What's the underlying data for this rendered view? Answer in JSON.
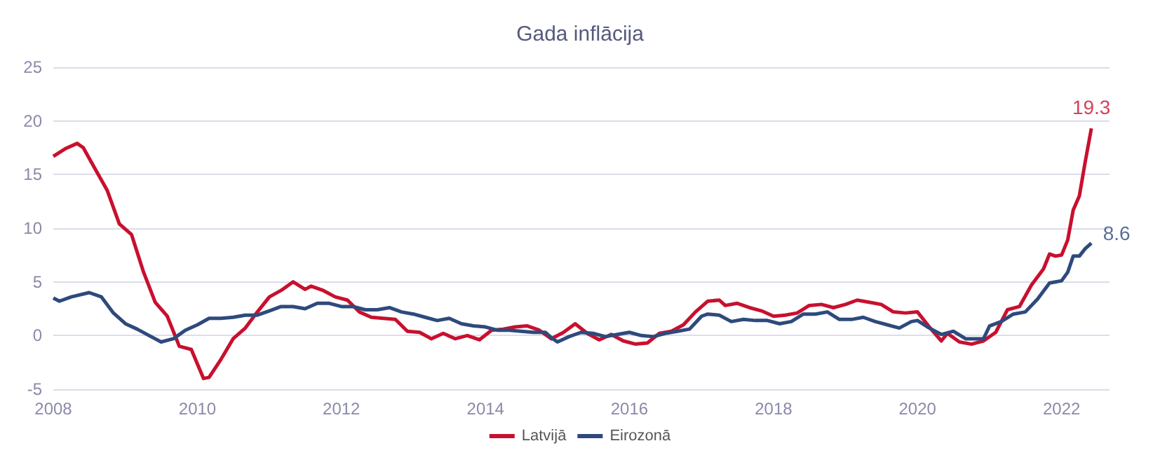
{
  "chart_data": {
    "type": "line",
    "title": "Gada inflācija",
    "xlim": [
      "2008-01",
      "2022-09"
    ],
    "xticks": [
      "2008",
      "2010",
      "2012",
      "2014",
      "2016",
      "2018",
      "2020",
      "2022"
    ],
    "ylim": [
      -5,
      25
    ],
    "yticks": [
      -5,
      0,
      5,
      10,
      15,
      20,
      25
    ],
    "grid": "y",
    "legend": "bottom",
    "marker": "none",
    "line_style": "solid",
    "series": [
      {
        "name": "Latvijā",
        "color": "#c8102e",
        "x": [
          "2008-01",
          "2008-03",
          "2008-05",
          "2008-06",
          "2008-08",
          "2008-10",
          "2008-12",
          "2009-02",
          "2009-04",
          "2009-06",
          "2009-08",
          "2009-10",
          "2009-12",
          "2010-02",
          "2010-03",
          "2010-05",
          "2010-07",
          "2010-09",
          "2010-11",
          "2011-01",
          "2011-03",
          "2011-05",
          "2011-07",
          "2011-08",
          "2011-10",
          "2011-12",
          "2012-02",
          "2012-04",
          "2012-06",
          "2012-08",
          "2012-10",
          "2012-12",
          "2013-02",
          "2013-04",
          "2013-06",
          "2013-08",
          "2013-10",
          "2013-12",
          "2014-02",
          "2014-04",
          "2014-06",
          "2014-08",
          "2014-10",
          "2014-12",
          "2015-02",
          "2015-04",
          "2015-06",
          "2015-08",
          "2015-10",
          "2015-12",
          "2016-02",
          "2016-04",
          "2016-06",
          "2016-08",
          "2016-10",
          "2016-12",
          "2017-02",
          "2017-04",
          "2017-05",
          "2017-07",
          "2017-09",
          "2017-11",
          "2018-01",
          "2018-03",
          "2018-05",
          "2018-07",
          "2018-09",
          "2018-11",
          "2019-01",
          "2019-03",
          "2019-05",
          "2019-07",
          "2019-09",
          "2019-11",
          "2020-01",
          "2020-03",
          "2020-05",
          "2020-06",
          "2020-08",
          "2020-10",
          "2020-12",
          "2021-02",
          "2021-04",
          "2021-06",
          "2021-08",
          "2021-10",
          "2021-11",
          "2021-12",
          "2022-01",
          "2022-02",
          "2022-03",
          "2022-04",
          "2022-05",
          "2022-06"
        ],
        "values": [
          16.7,
          17.4,
          17.9,
          17.5,
          15.5,
          13.5,
          10.4,
          9.4,
          6.0,
          3.1,
          1.8,
          -1.0,
          -1.3,
          -4.0,
          -3.9,
          -2.2,
          -0.3,
          0.7,
          2.2,
          3.6,
          4.2,
          5.0,
          4.3,
          4.6,
          4.2,
          3.6,
          3.3,
          2.2,
          1.7,
          1.6,
          1.5,
          0.4,
          0.3,
          -0.3,
          0.2,
          -0.3,
          0.0,
          -0.4,
          0.5,
          0.6,
          0.8,
          0.9,
          0.5,
          -0.3,
          0.3,
          1.1,
          0.2,
          -0.4,
          0.1,
          -0.5,
          -0.8,
          -0.7,
          0.2,
          0.4,
          1.0,
          2.2,
          3.2,
          3.3,
          2.8,
          3.0,
          2.6,
          2.3,
          1.8,
          1.9,
          2.1,
          2.8,
          2.9,
          2.6,
          2.9,
          3.3,
          3.1,
          2.9,
          2.2,
          2.1,
          2.2,
          0.8,
          -0.5,
          0.2,
          -0.6,
          -0.8,
          -0.5,
          0.3,
          2.4,
          2.7,
          4.7,
          6.2,
          7.6,
          7.4,
          7.5,
          8.9,
          11.7,
          13.0,
          16.2,
          19.3
        ]
      },
      {
        "name": "Eirozonā",
        "color": "#2e4a7d",
        "x": [
          "2008-01",
          "2008-02",
          "2008-04",
          "2008-07",
          "2008-09",
          "2008-11",
          "2009-01",
          "2009-03",
          "2009-05",
          "2009-07",
          "2009-09",
          "2009-11",
          "2010-01",
          "2010-03",
          "2010-05",
          "2010-07",
          "2010-09",
          "2010-11",
          "2011-01",
          "2011-03",
          "2011-05",
          "2011-07",
          "2011-09",
          "2011-11",
          "2012-01",
          "2012-03",
          "2012-05",
          "2012-07",
          "2012-09",
          "2012-11",
          "2013-01",
          "2013-03",
          "2013-05",
          "2013-07",
          "2013-09",
          "2013-11",
          "2014-01",
          "2014-03",
          "2014-05",
          "2014-07",
          "2014-09",
          "2014-11",
          "2014-12",
          "2015-01",
          "2015-03",
          "2015-05",
          "2015-07",
          "2015-09",
          "2015-11",
          "2016-01",
          "2016-03",
          "2016-05",
          "2016-07",
          "2016-09",
          "2016-11",
          "2017-01",
          "2017-02",
          "2017-04",
          "2017-06",
          "2017-08",
          "2017-10",
          "2017-12",
          "2018-02",
          "2018-04",
          "2018-06",
          "2018-08",
          "2018-10",
          "2018-12",
          "2019-02",
          "2019-04",
          "2019-06",
          "2019-08",
          "2019-10",
          "2019-12",
          "2020-01",
          "2020-03",
          "2020-05",
          "2020-07",
          "2020-09",
          "2020-12",
          "2021-01",
          "2021-03",
          "2021-05",
          "2021-07",
          "2021-09",
          "2021-11",
          "2021-12",
          "2022-01",
          "2022-02",
          "2022-03",
          "2022-04",
          "2022-05",
          "2022-06"
        ],
        "values": [
          3.5,
          3.2,
          3.6,
          4.0,
          3.6,
          2.1,
          1.1,
          0.6,
          0.0,
          -0.6,
          -0.3,
          0.5,
          1.0,
          1.6,
          1.6,
          1.7,
          1.9,
          1.9,
          2.3,
          2.7,
          2.7,
          2.5,
          3.0,
          3.0,
          2.7,
          2.7,
          2.4,
          2.4,
          2.6,
          2.2,
          2.0,
          1.7,
          1.4,
          1.6,
          1.1,
          0.9,
          0.8,
          0.5,
          0.5,
          0.4,
          0.3,
          0.3,
          -0.2,
          -0.6,
          -0.1,
          0.3,
          0.2,
          -0.1,
          0.1,
          0.3,
          0.0,
          -0.1,
          0.2,
          0.4,
          0.6,
          1.8,
          2.0,
          1.9,
          1.3,
          1.5,
          1.4,
          1.4,
          1.1,
          1.3,
          2.0,
          2.0,
          2.2,
          1.5,
          1.5,
          1.7,
          1.3,
          1.0,
          0.7,
          1.3,
          1.4,
          0.7,
          0.1,
          0.4,
          -0.3,
          -0.3,
          0.9,
          1.3,
          2.0,
          2.2,
          3.4,
          4.9,
          5.0,
          5.1,
          5.9,
          7.4,
          7.4,
          8.1,
          8.6
        ]
      }
    ],
    "annotations": [
      {
        "text": "19.3",
        "x": "2022-06",
        "y": 19.3
      },
      {
        "text": "8.6",
        "x": "2022-06",
        "y": 8.6
      }
    ]
  }
}
